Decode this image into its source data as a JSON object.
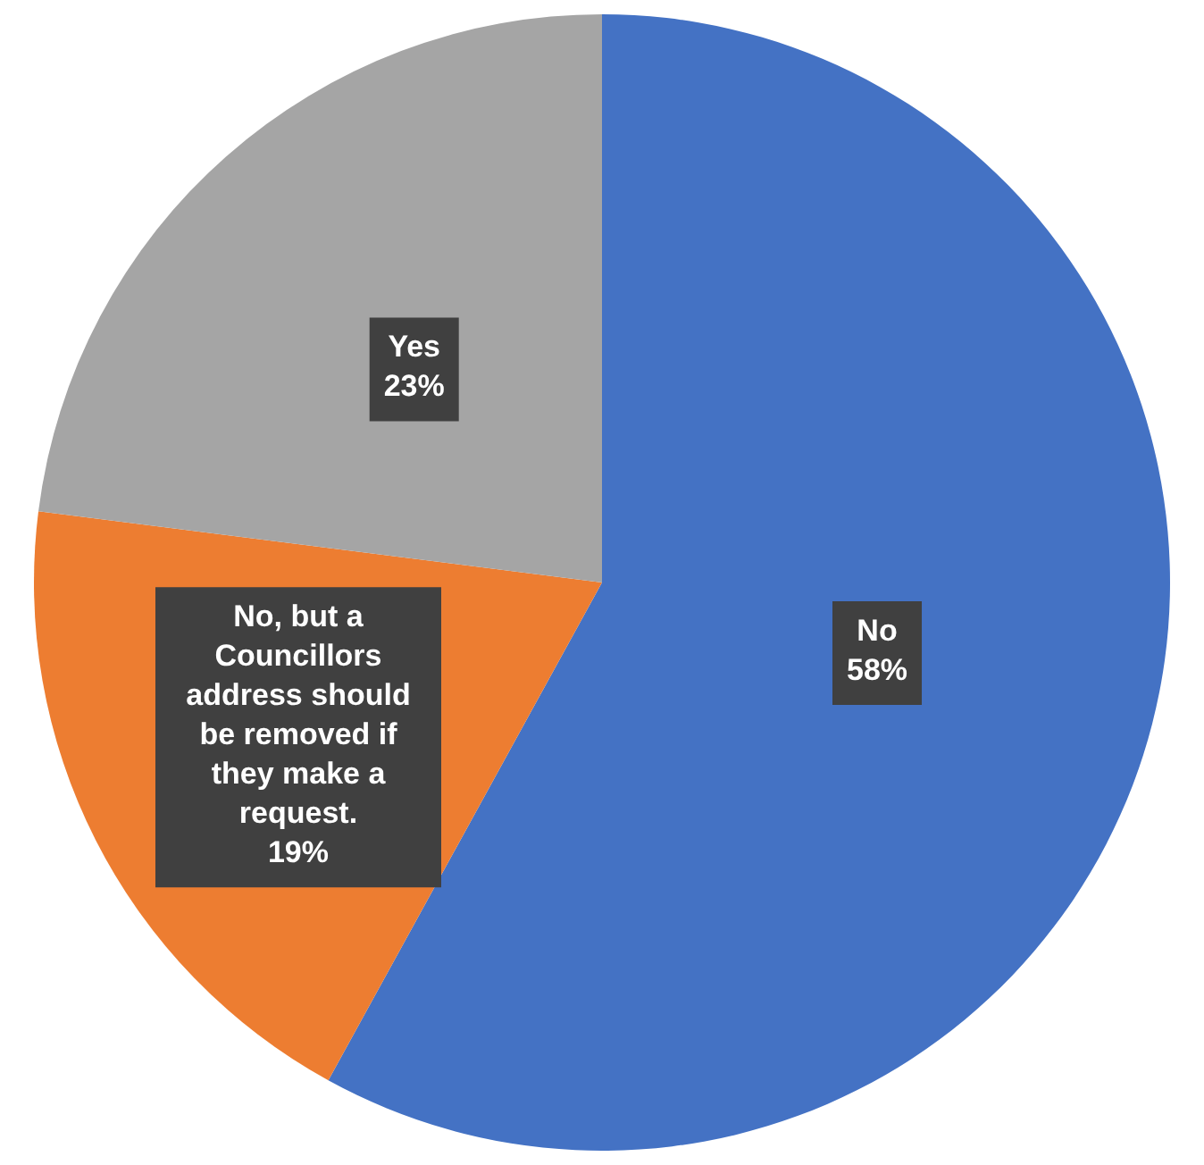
{
  "chart_data": {
    "type": "pie",
    "categories": [
      "No",
      "No, but a Councillors address should be removed if they make a request.",
      "Yes"
    ],
    "values": [
      58,
      19,
      23
    ],
    "value_labels": [
      "58%",
      "19%",
      "23%"
    ],
    "colors": [
      "#4472c4",
      "#ed7d31",
      "#a5a5a5"
    ]
  }
}
